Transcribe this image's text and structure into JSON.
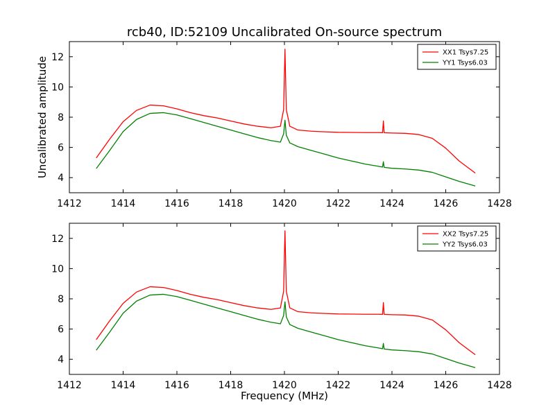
{
  "title": "rcb40, ID:52109 Uncalibrated On-source spectrum",
  "chart_data": [
    {
      "type": "line",
      "xlabel": "",
      "ylabel": "Uncalibrated amplitude",
      "xlim": [
        1412,
        1428
      ],
      "ylim": [
        3,
        13
      ],
      "xticks": [
        "1412",
        "1414",
        "1416",
        "1418",
        "1420",
        "1422",
        "1424",
        "1426",
        "1428"
      ],
      "yticks": [
        "4",
        "6",
        "8",
        "10",
        "12"
      ],
      "legend": "top-right",
      "series": [
        {
          "name": "XX1 Tsys7.25",
          "color": "#ff0000",
          "x": [
            1413.0,
            1413.5,
            1414.0,
            1414.5,
            1415.0,
            1415.5,
            1416.0,
            1416.5,
            1417.0,
            1417.5,
            1418.0,
            1418.5,
            1419.0,
            1419.5,
            1419.85,
            1419.97,
            1420.02,
            1420.07,
            1420.2,
            1420.5,
            1421.0,
            1421.5,
            1422.0,
            1422.5,
            1423.0,
            1423.5,
            1423.65,
            1423.68,
            1423.71,
            1424.0,
            1424.5,
            1425.0,
            1425.5,
            1426.0,
            1426.5,
            1427.1
          ],
          "y": [
            5.3,
            6.55,
            7.7,
            8.45,
            8.8,
            8.75,
            8.55,
            8.3,
            8.1,
            7.95,
            7.75,
            7.55,
            7.4,
            7.3,
            7.4,
            8.5,
            12.5,
            8.5,
            7.4,
            7.15,
            7.07,
            7.03,
            7.0,
            6.99,
            6.98,
            6.98,
            6.97,
            7.75,
            6.97,
            6.95,
            6.93,
            6.85,
            6.6,
            5.95,
            5.1,
            4.3
          ]
        },
        {
          "name": "YY1 Tsys6.03",
          "color": "#008000",
          "x": [
            1413.0,
            1413.5,
            1414.0,
            1414.5,
            1415.0,
            1415.5,
            1416.0,
            1416.5,
            1417.0,
            1417.5,
            1418.0,
            1418.5,
            1419.0,
            1419.5,
            1419.85,
            1419.97,
            1420.02,
            1420.07,
            1420.2,
            1420.5,
            1421.0,
            1421.5,
            1422.0,
            1422.5,
            1423.0,
            1423.5,
            1423.65,
            1423.68,
            1423.71,
            1424.0,
            1424.5,
            1425.0,
            1425.5,
            1426.0,
            1426.5,
            1427.1
          ],
          "y": [
            4.6,
            5.8,
            7.05,
            7.85,
            8.25,
            8.3,
            8.15,
            7.9,
            7.65,
            7.4,
            7.15,
            6.9,
            6.65,
            6.45,
            6.35,
            6.9,
            7.8,
            6.8,
            6.3,
            6.05,
            5.8,
            5.55,
            5.3,
            5.1,
            4.9,
            4.75,
            4.7,
            5.05,
            4.68,
            4.62,
            4.57,
            4.5,
            4.35,
            4.05,
            3.75,
            3.45
          ]
        }
      ]
    },
    {
      "type": "line",
      "xlabel": "Frequency (MHz)",
      "ylabel": "",
      "xlim": [
        1412,
        1428
      ],
      "ylim": [
        3,
        13
      ],
      "xticks": [
        "1412",
        "1414",
        "1416",
        "1418",
        "1420",
        "1422",
        "1424",
        "1426",
        "1428"
      ],
      "yticks": [
        "4",
        "6",
        "8",
        "10",
        "12"
      ],
      "legend": "top-right",
      "series": [
        {
          "name": "XX2 Tsys7.25",
          "color": "#ff0000",
          "x": [
            1413.0,
            1413.5,
            1414.0,
            1414.5,
            1415.0,
            1415.5,
            1416.0,
            1416.5,
            1417.0,
            1417.5,
            1418.0,
            1418.5,
            1419.0,
            1419.5,
            1419.85,
            1419.97,
            1420.02,
            1420.07,
            1420.2,
            1420.5,
            1421.0,
            1421.5,
            1422.0,
            1422.5,
            1423.0,
            1423.5,
            1423.65,
            1423.68,
            1423.71,
            1424.0,
            1424.5,
            1425.0,
            1425.5,
            1426.0,
            1426.5,
            1427.1
          ],
          "y": [
            5.3,
            6.55,
            7.7,
            8.45,
            8.8,
            8.75,
            8.55,
            8.3,
            8.1,
            7.95,
            7.75,
            7.55,
            7.4,
            7.3,
            7.4,
            8.5,
            12.5,
            8.5,
            7.4,
            7.15,
            7.07,
            7.03,
            7.0,
            6.99,
            6.98,
            6.98,
            6.97,
            7.75,
            6.97,
            6.95,
            6.93,
            6.85,
            6.6,
            5.95,
            5.1,
            4.3
          ]
        },
        {
          "name": "YY2 Tsys6.03",
          "color": "#008000",
          "x": [
            1413.0,
            1413.5,
            1414.0,
            1414.5,
            1415.0,
            1415.5,
            1416.0,
            1416.5,
            1417.0,
            1417.5,
            1418.0,
            1418.5,
            1419.0,
            1419.5,
            1419.85,
            1419.97,
            1420.02,
            1420.07,
            1420.2,
            1420.5,
            1421.0,
            1421.5,
            1422.0,
            1422.5,
            1423.0,
            1423.5,
            1423.65,
            1423.68,
            1423.71,
            1424.0,
            1424.5,
            1425.0,
            1425.5,
            1426.0,
            1426.5,
            1427.1
          ],
          "y": [
            4.6,
            5.8,
            7.05,
            7.85,
            8.25,
            8.3,
            8.15,
            7.9,
            7.65,
            7.4,
            7.15,
            6.9,
            6.65,
            6.45,
            6.35,
            6.9,
            7.8,
            6.8,
            6.3,
            6.05,
            5.8,
            5.55,
            5.3,
            5.1,
            4.9,
            4.75,
            4.7,
            5.05,
            4.68,
            4.62,
            4.57,
            4.5,
            4.35,
            4.05,
            3.75,
            3.45
          ]
        }
      ]
    }
  ]
}
